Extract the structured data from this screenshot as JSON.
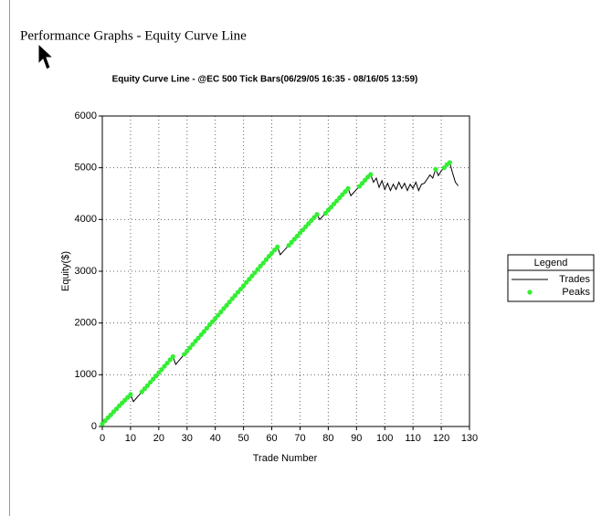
{
  "page_title": "Performance Graphs - Equity Curve Line",
  "chart_data": {
    "type": "line",
    "title": "Equity Curve Line - @EC 500 Tick Bars(06/29/05 16:35 - 08/16/05 13:59)",
    "x_label": "Trade Number",
    "y_label": "Equity($)",
    "xlim": [
      0,
      130
    ],
    "ylim": [
      0,
      6000
    ],
    "xticks": [
      0,
      10,
      20,
      30,
      40,
      50,
      60,
      70,
      80,
      90,
      100,
      110,
      120,
      130
    ],
    "yticks": [
      0,
      1000,
      2000,
      3000,
      4000,
      5000,
      6000
    ],
    "grid": true,
    "legend_title": "Legend",
    "legend_position": "right",
    "series": [
      {
        "name": "Trades",
        "color": "#000000",
        "mark": "line",
        "x": [
          0,
          1,
          2,
          3,
          4,
          5,
          6,
          7,
          8,
          9,
          10,
          11,
          12,
          13,
          14,
          15,
          16,
          17,
          18,
          19,
          20,
          21,
          22,
          23,
          24,
          25,
          26,
          27,
          28,
          29,
          30,
          31,
          32,
          33,
          34,
          35,
          36,
          37,
          38,
          39,
          40,
          41,
          42,
          43,
          44,
          45,
          46,
          47,
          48,
          49,
          50,
          51,
          52,
          53,
          54,
          55,
          56,
          57,
          58,
          59,
          60,
          61,
          62,
          63,
          64,
          65,
          66,
          67,
          68,
          69,
          70,
          71,
          72,
          73,
          74,
          75,
          76,
          77,
          78,
          79,
          80,
          81,
          82,
          83,
          84,
          85,
          86,
          87,
          88,
          89,
          90,
          91,
          92,
          93,
          94,
          95,
          96,
          97,
          98,
          99,
          100,
          101,
          102,
          103,
          104,
          105,
          106,
          107,
          108,
          109,
          110,
          111,
          112,
          113,
          114,
          115,
          116,
          117,
          118,
          119,
          120,
          121,
          122,
          123,
          124,
          125,
          126
        ],
        "values": [
          50,
          110,
          170,
          225,
          285,
          340,
          400,
          455,
          510,
          565,
          620,
          480,
          545,
          605,
          670,
          730,
          790,
          855,
          915,
          975,
          1040,
          1100,
          1165,
          1225,
          1290,
          1350,
          1200,
          1265,
          1330,
          1395,
          1460,
          1520,
          1585,
          1650,
          1710,
          1775,
          1835,
          1900,
          1965,
          2025,
          2090,
          2150,
          2215,
          2280,
          2340,
          2405,
          2470,
          2530,
          2595,
          2655,
          2720,
          2785,
          2845,
          2910,
          2970,
          3035,
          3100,
          3160,
          3225,
          3290,
          3350,
          3410,
          3470,
          3320,
          3380,
          3440,
          3500,
          3560,
          3620,
          3680,
          3740,
          3800,
          3860,
          3920,
          3980,
          4040,
          4100,
          4000,
          4060,
          4120,
          4180,
          4240,
          4300,
          4360,
          4420,
          4480,
          4540,
          4600,
          4460,
          4520,
          4580,
          4640,
          4700,
          4760,
          4820,
          4870,
          4720,
          4800,
          4620,
          4750,
          4580,
          4700,
          4560,
          4680,
          4580,
          4720,
          4600,
          4700,
          4560,
          4680,
          4600,
          4720,
          4560,
          4680,
          4700,
          4780,
          4860,
          4800,
          4970,
          4850,
          4940,
          5000,
          5060,
          5100,
          4900,
          4720,
          4650
        ]
      },
      {
        "name": "Peaks",
        "color": "#33ee33",
        "mark": "dot",
        "x": [
          0,
          1,
          2,
          3,
          4,
          5,
          6,
          7,
          8,
          9,
          10,
          14,
          15,
          16,
          17,
          18,
          19,
          20,
          21,
          22,
          23,
          24,
          25,
          29,
          30,
          31,
          32,
          33,
          34,
          35,
          36,
          37,
          38,
          39,
          40,
          41,
          42,
          43,
          44,
          45,
          46,
          47,
          48,
          49,
          50,
          51,
          52,
          53,
          54,
          55,
          56,
          57,
          58,
          59,
          60,
          61,
          62,
          66,
          67,
          68,
          69,
          70,
          71,
          72,
          73,
          74,
          75,
          76,
          79,
          80,
          81,
          82,
          83,
          84,
          85,
          86,
          87,
          91,
          92,
          93,
          94,
          95,
          118,
          121,
          122,
          123
        ],
        "values": [
          50,
          110,
          170,
          225,
          285,
          340,
          400,
          455,
          510,
          565,
          620,
          670,
          730,
          790,
          855,
          915,
          975,
          1040,
          1100,
          1165,
          1225,
          1290,
          1350,
          1395,
          1460,
          1520,
          1585,
          1650,
          1710,
          1775,
          1835,
          1900,
          1965,
          2025,
          2090,
          2150,
          2215,
          2280,
          2340,
          2405,
          2470,
          2530,
          2595,
          2655,
          2720,
          2785,
          2845,
          2910,
          2970,
          3035,
          3100,
          3160,
          3225,
          3290,
          3350,
          3410,
          3470,
          3500,
          3560,
          3620,
          3680,
          3740,
          3800,
          3860,
          3920,
          3980,
          4040,
          4100,
          4120,
          4180,
          4240,
          4300,
          4360,
          4420,
          4480,
          4540,
          4600,
          4640,
          4700,
          4760,
          4820,
          4870,
          4970,
          5000,
          5060,
          5100
        ]
      }
    ]
  }
}
